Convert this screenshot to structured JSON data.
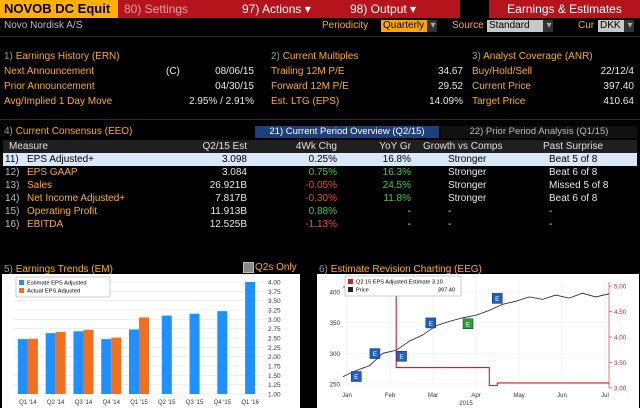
{
  "header": {
    "ticker": "NOVOB DC Equit",
    "settings_label": "80) Settings",
    "actions_label": "97) Actions",
    "output_label": "98) Output",
    "title": "Earnings & Estimates",
    "company": "Novo Nordisk A/S",
    "periodicity_label": "Periodicity",
    "periodicity_value": "Quarterly",
    "source_label": "Source",
    "source_value": "Standard",
    "cur_label": "Cur",
    "cur_value": "DKK"
  },
  "earnings_history": {
    "title_num": "1)",
    "title": "Earnings History (ERN)",
    "rows": [
      {
        "label": "Next Announcement",
        "flag": "(C)",
        "value": "08/06/15"
      },
      {
        "label": "Prior Announcement",
        "flag": "",
        "value": "04/30/15"
      },
      {
        "label": "Avg/Implied 1 Day Move",
        "flag": "",
        "value": "2.95% / 2.91%"
      }
    ]
  },
  "current_multiples": {
    "title_num": "2)",
    "title": "Current Multiples",
    "rows": [
      {
        "label": "Trailing 12M P/E",
        "value": "34.67"
      },
      {
        "label": "Forward 12M P/E",
        "value": "29.52"
      },
      {
        "label": "Est. LTG (EPS)",
        "value": "14.09%"
      }
    ]
  },
  "analyst_coverage": {
    "title_num": "3)",
    "title": "Analyst Coverage (ANR)",
    "rows": [
      {
        "label": "Buy/Hold/Sell",
        "value": "22/12/4"
      },
      {
        "label": "Current Price",
        "value": "397.40"
      },
      {
        "label": "Target Price",
        "value": "410.64"
      }
    ]
  },
  "consensus": {
    "title_num": "4)",
    "title": "Current Consensus (EEO)",
    "tab_active": "21) Current Period Overview (Q2/15)",
    "tab_inactive": "22) Prior Period Analysis (Q1/15)",
    "columns": [
      "Measure",
      "Q2/15 Est",
      "4Wk Chg",
      "YoY Gr",
      "Growth vs Comps",
      "Past Surprise"
    ],
    "rows": [
      {
        "num": "11)",
        "measure": "EPS Adjusted+",
        "est": "3.098",
        "chg": "0.25%",
        "chg_sign": "pos",
        "yoy": "16.8%",
        "yoy_sign": "pos",
        "growth": "Stronger",
        "surprise": "Beat 5 of 8"
      },
      {
        "num": "12)",
        "measure": "EPS GAAP",
        "est": "3.084",
        "chg": "0.75%",
        "chg_sign": "pos",
        "yoy": "16.3%",
        "yoy_sign": "pos",
        "growth": "Stronger",
        "surprise": "Beat 6 of 8"
      },
      {
        "num": "13)",
        "measure": "Sales",
        "est": "26.921B",
        "chg": "-0.05%",
        "chg_sign": "neg",
        "yoy": "24.5%",
        "yoy_sign": "pos",
        "growth": "Stronger",
        "surprise": "Missed 5 of 8"
      },
      {
        "num": "14)",
        "measure": "Net Income Adjusted+",
        "est": "7.817B",
        "chg": "-0.30%",
        "chg_sign": "neg",
        "yoy": "11.8%",
        "yoy_sign": "pos",
        "growth": "Stronger",
        "surprise": "Beat 6 of 8"
      },
      {
        "num": "15)",
        "measure": "Operating Profit",
        "est": "11.913B",
        "chg": "0.88%",
        "chg_sign": "pos",
        "yoy": "-",
        "yoy_sign": "none",
        "growth": "-",
        "surprise": "-"
      },
      {
        "num": "16)",
        "measure": "EBITDA",
        "est": "12.525B",
        "chg": "-1.13%",
        "chg_sign": "neg",
        "yoy": "-",
        "yoy_sign": "none",
        "growth": "-",
        "surprise": "-"
      }
    ]
  },
  "trends": {
    "title_num": "5)",
    "title": "Earnings Trends (EM)",
    "toggle_label": "Q2s Only",
    "legend_estimate": "Estimate EPS Adjusted",
    "legend_actual": "Actual EPS Adjusted",
    "colors": {
      "estimate": "#1e90ff",
      "actual": "#f07020"
    }
  },
  "revision": {
    "title_num": "6)",
    "title": "Estimate Revision Charting (EEG)",
    "legend_eps": "Q2 15 EPS Adjusted Estimate 3.10",
    "legend_price": "Price",
    "legend_price_value": "397.40",
    "year_label": "2015"
  },
  "chart_data": [
    {
      "type": "bar",
      "title": "Earnings Trends (EM)",
      "categories": [
        "Q1 14",
        "Q2 14",
        "Q3 14",
        "Q4 14",
        "Q1 15",
        "Q2 15",
        "Q3 15",
        "Q4 15",
        "Q1 16"
      ],
      "tick_labels": [
        "Q1 '14",
        "Q2 '14",
        "Q3 '14",
        "Q4 '14",
        "Q1 '15",
        "Q2 '15",
        "Q3 '15",
        "Q4 '15",
        "Q1 '16"
      ],
      "series": [
        {
          "name": "Estimate EPS Adjusted",
          "values": [
            2.47,
            2.63,
            2.68,
            2.47,
            2.73,
            3.1,
            3.15,
            3.22,
            4.0
          ]
        },
        {
          "name": "Actual EPS Adjusted",
          "values": [
            2.48,
            2.66,
            2.72,
            2.51,
            3.05,
            null,
            null,
            null,
            null
          ]
        }
      ],
      "y_ticks": [
        "1.00",
        "1.25",
        "1.50",
        "1.75",
        "2.00",
        "2.25",
        "2.50",
        "2.75",
        "3.00",
        "3.25",
        "3.50",
        "3.75",
        "4.00"
      ],
      "ylim": [
        1.0,
        4.0
      ]
    },
    {
      "type": "line",
      "title": "Estimate Revision Charting (EEG)",
      "x_ticks": [
        "Jan",
        "Feb",
        "Mar",
        "Apr",
        "May",
        "Jun",
        "Jul"
      ],
      "y_left_ticks": [
        "250",
        "300",
        "350",
        "400"
      ],
      "y_right_ticks": [
        "3.00",
        "3.50",
        "4.00",
        "4.50",
        "5.00"
      ],
      "y_left_range": [
        250,
        400
      ],
      "y_right_range": [
        3.0,
        5.0
      ],
      "series": [
        {
          "name": "Q2 15 EPS Adjusted Estimate",
          "axis": "right",
          "x": [
            0,
            0.2,
            0.2,
            0.55,
            0.55,
            0.58,
            0.58,
            1.0
          ],
          "values": [
            4.98,
            4.98,
            3.4,
            3.4,
            3.05,
            3.05,
            3.1,
            3.1
          ]
        },
        {
          "name": "Price",
          "axis": "left",
          "x": [
            0,
            0.05,
            0.1,
            0.15,
            0.2,
            0.25,
            0.3,
            0.35,
            0.4,
            0.45,
            0.5,
            0.55,
            0.6,
            0.65,
            0.7,
            0.75,
            0.8,
            0.85,
            0.9,
            0.95,
            1.0
          ],
          "values": [
            262,
            272,
            280,
            300,
            305,
            320,
            330,
            345,
            352,
            358,
            362,
            370,
            380,
            385,
            392,
            388,
            395,
            390,
            398,
            392,
            397
          ]
        }
      ],
      "markers": [
        {
          "label": "E",
          "x": 0.05
        },
        {
          "label": "E",
          "x": 0.12
        },
        {
          "label": "E",
          "x": 0.22
        },
        {
          "label": "E",
          "x": 0.33
        },
        {
          "label": "E",
          "x": 0.47
        },
        {
          "label": "E",
          "x": 0.58
        }
      ]
    }
  ]
}
